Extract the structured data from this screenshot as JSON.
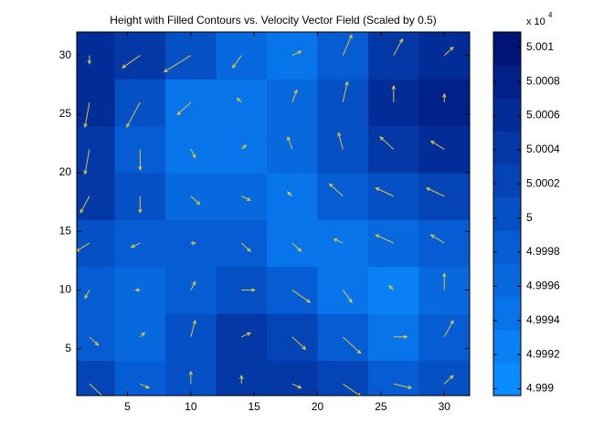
{
  "chart_data": {
    "type": "contourf",
    "title": "Height with Filled Contours vs. Velocity Vector Field (Scaled by 0.5)",
    "x": [
      2,
      6,
      10,
      14,
      18,
      22,
      26,
      30
    ],
    "y": [
      2,
      6,
      10,
      14,
      18,
      22,
      26,
      30
    ],
    "z": [
      [
        50002,
        49998,
        50000,
        50004,
        50004,
        50002,
        49998,
        50000
      ],
      [
        49998,
        49996,
        50000,
        50004,
        50002,
        49998,
        49994,
        49998
      ],
      [
        49998,
        49996,
        49998,
        50000,
        49998,
        49994,
        49992,
        49996
      ],
      [
        50000,
        49998,
        49998,
        49998,
        49994,
        49994,
        49996,
        49998
      ],
      [
        50004,
        50000,
        49996,
        49996,
        49994,
        49998,
        50000,
        50002
      ],
      [
        50004,
        49998,
        49994,
        49994,
        49996,
        50000,
        50004,
        50006
      ],
      [
        50006,
        50000,
        49994,
        49994,
        49996,
        50000,
        50006,
        50008
      ],
      [
        50006,
        50004,
        50000,
        49996,
        49994,
        49998,
        50004,
        50006
      ]
    ],
    "quiver": {
      "color": "#d8c840",
      "u": [
        [
          4,
          2,
          0,
          0,
          2,
          4,
          4,
          2
        ],
        [
          2,
          1,
          1,
          2,
          3,
          4,
          3,
          2
        ],
        [
          -1,
          -1,
          1,
          3,
          4,
          2,
          -1,
          0
        ],
        [
          -3,
          -2,
          1,
          2,
          2,
          -2,
          -4,
          -3
        ],
        [
          -2,
          0,
          2,
          2,
          -1,
          -3,
          -4,
          -4
        ],
        [
          -1,
          0,
          1,
          1,
          -1,
          -1,
          -3,
          -3
        ],
        [
          -1,
          -3,
          -3,
          -1,
          1,
          1,
          0,
          0
        ],
        [
          0,
          -4,
          -6,
          -2,
          2,
          2,
          2,
          2
        ]
      ],
      "v": [
        [
          -4,
          -1,
          3,
          2,
          -1,
          -3,
          -1,
          2
        ],
        [
          -2,
          1,
          4,
          1,
          -3,
          -4,
          0,
          4
        ],
        [
          -2,
          0,
          2,
          0,
          -3,
          -3,
          1,
          4
        ],
        [
          -2,
          -1,
          0,
          -2,
          -2,
          1,
          2,
          2
        ],
        [
          -4,
          -4,
          -2,
          -1,
          1,
          3,
          2,
          2
        ],
        [
          -6,
          -5,
          -2,
          1,
          3,
          4,
          3,
          2
        ],
        [
          -6,
          -6,
          -3,
          1,
          3,
          5,
          4,
          2
        ],
        [
          -2,
          -3,
          -4,
          -3,
          1,
          5,
          4,
          2
        ]
      ]
    },
    "xlim": [
      1,
      32
    ],
    "ylim": [
      1,
      32
    ],
    "xticks": [
      5,
      10,
      15,
      20,
      25,
      30
    ],
    "yticks": [
      5,
      10,
      15,
      20,
      25,
      30
    ],
    "colorbar": {
      "clim": [
        49989.6,
        50010.9
      ],
      "colormap": [
        "#0a8cff",
        "#0a80f5",
        "#0874ea",
        "#0868de",
        "#065cd2",
        "#0550c4",
        "#0444b6",
        "#0338a6",
        "#022c98",
        "#012088",
        "#001478"
      ],
      "ticks": [
        {
          "value": 49990,
          "label": "4.999"
        },
        {
          "value": 49992,
          "label": "4.9992"
        },
        {
          "value": 49994,
          "label": "4.9994"
        },
        {
          "value": 49996,
          "label": "4.9996"
        },
        {
          "value": 49998,
          "label": "4.9998"
        },
        {
          "value": 50000,
          "label": "5"
        },
        {
          "value": 50002,
          "label": "5.0002"
        },
        {
          "value": 50004,
          "label": "5.0004"
        },
        {
          "value": 50006,
          "label": "5.0006"
        },
        {
          "value": 50008,
          "label": "5.0008"
        },
        {
          "value": 50010,
          "label": "5.001"
        }
      ],
      "multiplier": "x 10",
      "exponent": "4"
    }
  }
}
